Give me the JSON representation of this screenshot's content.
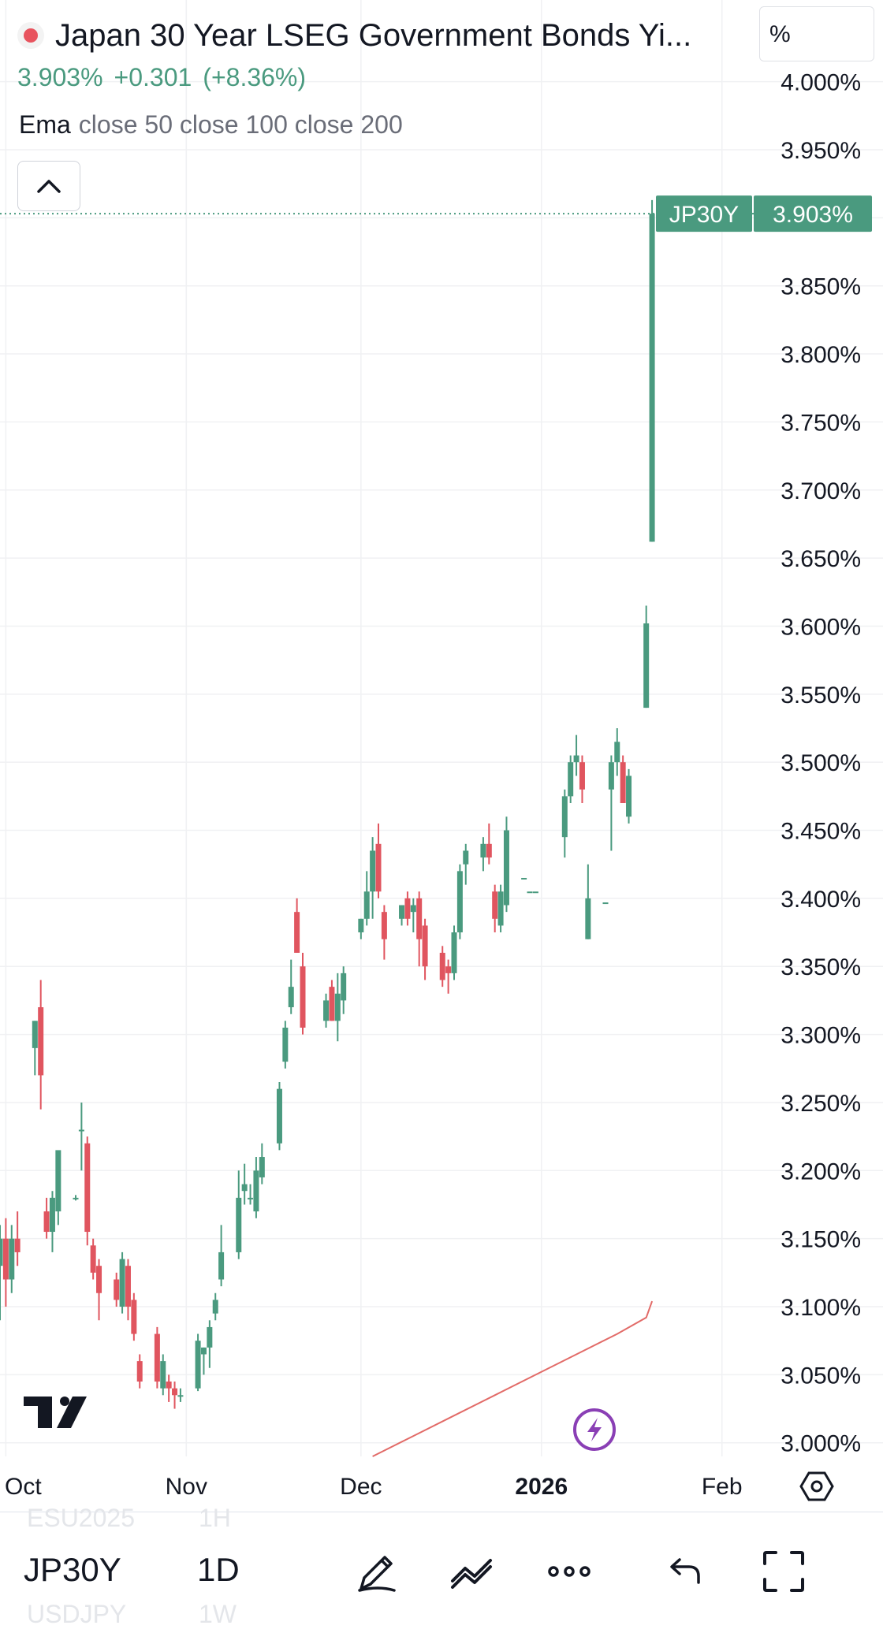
{
  "header": {
    "title": "Japan 30 Year LSEG Government Bonds Yi...",
    "last": "3.903%",
    "change": "+0.301",
    "change_pct": "(+8.36%)",
    "indicator_name": "Ema",
    "indicator_params": "close 50 close 100 close 200",
    "unit": "%"
  },
  "chart_data": {
    "type": "candlestick",
    "title": "Japan 30 Year LSEG Government Bonds Yi...",
    "interval": "1D",
    "y_tick_labels": [
      "4.000%",
      "3.950%",
      "3.850%",
      "3.800%",
      "3.750%",
      "3.700%",
      "3.650%",
      "3.600%",
      "3.550%",
      "3.500%",
      "3.450%",
      "3.400%",
      "3.350%",
      "3.300%",
      "3.250%",
      "3.200%",
      "3.150%",
      "3.100%",
      "3.050%",
      "3.000%"
    ],
    "y_ticks": [
      4.0,
      3.95,
      3.9,
      3.85,
      3.8,
      3.75,
      3.7,
      3.65,
      3.6,
      3.55,
      3.5,
      3.45,
      3.4,
      3.35,
      3.3,
      3.25,
      3.2,
      3.15,
      3.1,
      3.05,
      3.0
    ],
    "ylim": [
      2.99,
      4.06
    ],
    "x_tick_labels": [
      "Oct",
      "Nov",
      "Dec",
      "2026",
      "Feb"
    ],
    "x_tick_dates": [
      "2025-10-01",
      "2025-11-01",
      "2025-12-01",
      "2026-01-01",
      "2026-02-01"
    ],
    "xlim": [
      "2025-09-30",
      "2026-02-07"
    ],
    "last_price_label": {
      "symbol": "JP30Y",
      "value": "3.903%",
      "y": 3.903
    },
    "colors": {
      "up": "#4a9a7f",
      "down": "#e0555f",
      "ema200": "#e26b68"
    },
    "candles": [
      {
        "date": "2025-09-30",
        "o": 3.13,
        "h": 3.16,
        "l": 3.09,
        "c": 3.15
      },
      {
        "date": "2025-10-01",
        "o": 3.15,
        "h": 3.165,
        "l": 3.1,
        "c": 3.12
      },
      {
        "date": "2025-10-02",
        "o": 3.12,
        "h": 3.16,
        "l": 3.11,
        "c": 3.15
      },
      {
        "date": "2025-10-03",
        "o": 3.15,
        "h": 3.17,
        "l": 3.13,
        "c": 3.14
      },
      {
        "date": "2025-10-06",
        "o": 3.29,
        "h": 3.31,
        "l": 3.27,
        "c": 3.31
      },
      {
        "date": "2025-10-07",
        "o": 3.32,
        "h": 3.34,
        "l": 3.245,
        "c": 3.27
      },
      {
        "date": "2025-10-08",
        "o": 3.17,
        "h": 3.18,
        "l": 3.15,
        "c": 3.155
      },
      {
        "date": "2025-10-09",
        "o": 3.155,
        "h": 3.185,
        "l": 3.14,
        "c": 3.18
      },
      {
        "date": "2025-10-10",
        "o": 3.17,
        "h": 3.21,
        "l": 3.16,
        "c": 3.215
      },
      {
        "date": "2025-10-13",
        "o": 3.18,
        "h": 3.182,
        "l": 3.178,
        "c": 3.18
      },
      {
        "date": "2025-10-14",
        "o": 3.23,
        "h": 3.25,
        "l": 3.2,
        "c": 3.23
      },
      {
        "date": "2025-10-15",
        "o": 3.22,
        "h": 3.225,
        "l": 3.145,
        "c": 3.155
      },
      {
        "date": "2025-10-16",
        "o": 3.145,
        "h": 3.15,
        "l": 3.12,
        "c": 3.125
      },
      {
        "date": "2025-10-17",
        "o": 3.13,
        "h": 3.135,
        "l": 3.09,
        "c": 3.11
      },
      {
        "date": "2025-10-20",
        "o": 3.12,
        "h": 3.125,
        "l": 3.1,
        "c": 3.105
      },
      {
        "date": "2025-10-21",
        "o": 3.1,
        "h": 3.14,
        "l": 3.095,
        "c": 3.135
      },
      {
        "date": "2025-10-22",
        "o": 3.13,
        "h": 3.135,
        "l": 3.09,
        "c": 3.1
      },
      {
        "date": "2025-10-23",
        "o": 3.105,
        "h": 3.11,
        "l": 3.075,
        "c": 3.08
      },
      {
        "date": "2025-10-24",
        "o": 3.06,
        "h": 3.065,
        "l": 3.04,
        "c": 3.045
      },
      {
        "date": "2025-10-27",
        "o": 3.08,
        "h": 3.085,
        "l": 3.04,
        "c": 3.045
      },
      {
        "date": "2025-10-28",
        "o": 3.04,
        "h": 3.065,
        "l": 3.035,
        "c": 3.06
      },
      {
        "date": "2025-10-29",
        "o": 3.045,
        "h": 3.05,
        "l": 3.03,
        "c": 3.04
      },
      {
        "date": "2025-10-30",
        "o": 3.04,
        "h": 3.045,
        "l": 3.025,
        "c": 3.035
      },
      {
        "date": "2025-10-31",
        "o": 3.035,
        "h": 3.04,
        "l": 3.03,
        "c": 3.035
      },
      {
        "date": "2025-11-03",
        "o": 3.04,
        "h": 3.08,
        "l": 3.038,
        "c": 3.075
      },
      {
        "date": "2025-11-04",
        "o": 3.065,
        "h": 3.07,
        "l": 3.05,
        "c": 3.07
      },
      {
        "date": "2025-11-05",
        "o": 3.07,
        "h": 3.09,
        "l": 3.055,
        "c": 3.085
      },
      {
        "date": "2025-11-06",
        "o": 3.095,
        "h": 3.11,
        "l": 3.09,
        "c": 3.105
      },
      {
        "date": "2025-11-07",
        "o": 3.12,
        "h": 3.16,
        "l": 3.115,
        "c": 3.14
      },
      {
        "date": "2025-11-10",
        "o": 3.14,
        "h": 3.2,
        "l": 3.135,
        "c": 3.18
      },
      {
        "date": "2025-11-11",
        "o": 3.185,
        "h": 3.205,
        "l": 3.175,
        "c": 3.19
      },
      {
        "date": "2025-11-12",
        "o": 3.18,
        "h": 3.19,
        "l": 3.175,
        "c": 3.18
      },
      {
        "date": "2025-11-13",
        "o": 3.17,
        "h": 3.21,
        "l": 3.165,
        "c": 3.2
      },
      {
        "date": "2025-11-14",
        "o": 3.195,
        "h": 3.22,
        "l": 3.19,
        "c": 3.21
      },
      {
        "date": "2025-11-17",
        "o": 3.22,
        "h": 3.265,
        "l": 3.215,
        "c": 3.26
      },
      {
        "date": "2025-11-18",
        "o": 3.28,
        "h": 3.31,
        "l": 3.275,
        "c": 3.305
      },
      {
        "date": "2025-11-19",
        "o": 3.32,
        "h": 3.355,
        "l": 3.315,
        "c": 3.335
      },
      {
        "date": "2025-11-20",
        "o": 3.39,
        "h": 3.4,
        "l": 3.36,
        "c": 3.36
      },
      {
        "date": "2025-11-21",
        "o": 3.35,
        "h": 3.36,
        "l": 3.3,
        "c": 3.305
      },
      {
        "date": "2025-11-25",
        "o": 3.31,
        "h": 3.33,
        "l": 3.305,
        "c": 3.325
      },
      {
        "date": "2025-11-26",
        "o": 3.335,
        "h": 3.34,
        "l": 3.31,
        "c": 3.31
      },
      {
        "date": "2025-11-27",
        "o": 3.31,
        "h": 3.345,
        "l": 3.295,
        "c": 3.33
      },
      {
        "date": "2025-11-28",
        "o": 3.325,
        "h": 3.35,
        "l": 3.315,
        "c": 3.345
      },
      {
        "date": "2025-12-01",
        "o": 3.375,
        "h": 3.385,
        "l": 3.37,
        "c": 3.385
      },
      {
        "date": "2025-12-02",
        "o": 3.385,
        "h": 3.42,
        "l": 3.38,
        "c": 3.405
      },
      {
        "date": "2025-12-03",
        "o": 3.405,
        "h": 3.445,
        "l": 3.385,
        "c": 3.435
      },
      {
        "date": "2025-12-04",
        "o": 3.44,
        "h": 3.455,
        "l": 3.4,
        "c": 3.405
      },
      {
        "date": "2025-12-05",
        "o": 3.39,
        "h": 3.395,
        "l": 3.355,
        "c": 3.37
      },
      {
        "date": "2025-12-08",
        "o": 3.385,
        "h": 3.395,
        "l": 3.38,
        "c": 3.395
      },
      {
        "date": "2025-12-09",
        "o": 3.4,
        "h": 3.405,
        "l": 3.38,
        "c": 3.385
      },
      {
        "date": "2025-12-10",
        "o": 3.39,
        "h": 3.4,
        "l": 3.375,
        "c": 3.395
      },
      {
        "date": "2025-12-11",
        "o": 3.4,
        "h": 3.405,
        "l": 3.35,
        "c": 3.37
      },
      {
        "date": "2025-12-12",
        "o": 3.38,
        "h": 3.385,
        "l": 3.34,
        "c": 3.35
      },
      {
        "date": "2025-12-15",
        "o": 3.36,
        "h": 3.365,
        "l": 3.335,
        "c": 3.34
      },
      {
        "date": "2025-12-16",
        "o": 3.35,
        "h": 3.355,
        "l": 3.33,
        "c": 3.345
      },
      {
        "date": "2025-12-17",
        "o": 3.345,
        "h": 3.38,
        "l": 3.34,
        "c": 3.375
      },
      {
        "date": "2025-12-18",
        "o": 3.375,
        "h": 3.425,
        "l": 3.37,
        "c": 3.42
      },
      {
        "date": "2025-12-19",
        "o": 3.425,
        "h": 3.44,
        "l": 3.41,
        "c": 3.435
      },
      {
        "date": "2025-12-22",
        "o": 3.43,
        "h": 3.445,
        "l": 3.42,
        "c": 3.44
      },
      {
        "date": "2025-12-23",
        "o": 3.44,
        "h": 3.455,
        "l": 3.425,
        "c": 3.43
      },
      {
        "date": "2025-12-24",
        "o": 3.405,
        "h": 3.41,
        "l": 3.375,
        "c": 3.385
      },
      {
        "date": "2025-12-25",
        "o": 3.38,
        "h": 3.41,
        "l": 3.375,
        "c": 3.405
      },
      {
        "date": "2025-12-26",
        "o": 3.395,
        "h": 3.46,
        "l": 3.39,
        "c": 3.45
      },
      {
        "date": "2025-12-29",
        "o": 3.415,
        "h": 3.415,
        "l": 3.415,
        "c": 3.415
      },
      {
        "date": "2025-12-30",
        "o": 3.405,
        "h": 3.405,
        "l": 3.405,
        "c": 3.405
      },
      {
        "date": "2025-12-31",
        "o": 3.405,
        "h": 3.405,
        "l": 3.405,
        "c": 3.405
      },
      {
        "date": "2026-01-05",
        "o": 3.445,
        "h": 3.48,
        "l": 3.43,
        "c": 3.475
      },
      {
        "date": "2026-01-06",
        "o": 3.475,
        "h": 3.505,
        "l": 3.47,
        "c": 3.5
      },
      {
        "date": "2026-01-07",
        "o": 3.5,
        "h": 3.52,
        "l": 3.49,
        "c": 3.505
      },
      {
        "date": "2026-01-08",
        "o": 3.5,
        "h": 3.505,
        "l": 3.47,
        "c": 3.48
      },
      {
        "date": "2026-01-09",
        "o": 3.37,
        "h": 3.425,
        "l": 3.37,
        "c": 3.4
      },
      {
        "date": "2026-01-12",
        "o": 3.397,
        "h": 3.397,
        "l": 3.397,
        "c": 3.397
      },
      {
        "date": "2026-01-13",
        "o": 3.48,
        "h": 3.505,
        "l": 3.435,
        "c": 3.5
      },
      {
        "date": "2026-01-14",
        "o": 3.5,
        "h": 3.525,
        "l": 3.49,
        "c": 3.515
      },
      {
        "date": "2026-01-15",
        "o": 3.5,
        "h": 3.505,
        "l": 3.47,
        "c": 3.47
      },
      {
        "date": "2026-01-16",
        "o": 3.46,
        "h": 3.495,
        "l": 3.455,
        "c": 3.49
      },
      {
        "date": "2026-01-19",
        "o": 3.54,
        "h": 3.615,
        "l": 3.54,
        "c": 3.602
      },
      {
        "date": "2026-01-20",
        "o": 3.662,
        "h": 3.913,
        "l": 3.662,
        "c": 3.903
      }
    ],
    "ema_200": [
      {
        "date": "2025-12-03",
        "y": 2.99
      },
      {
        "date": "2025-12-10",
        "y": 3.005
      },
      {
        "date": "2025-12-17",
        "y": 3.02
      },
      {
        "date": "2025-12-24",
        "y": 3.035
      },
      {
        "date": "2025-12-31",
        "y": 3.05
      },
      {
        "date": "2026-01-07",
        "y": 3.065
      },
      {
        "date": "2026-01-14",
        "y": 3.08
      },
      {
        "date": "2026-01-19",
        "y": 3.092
      },
      {
        "date": "2026-01-20",
        "y": 3.104
      }
    ]
  },
  "toolbar": {
    "symbol": "JP30Y",
    "interval": "1D",
    "ghost_top_symbol": "ESU2025",
    "ghost_top_interval": "1H",
    "ghost_bottom_symbol": "USDJPY",
    "ghost_bottom_interval": "1W"
  }
}
